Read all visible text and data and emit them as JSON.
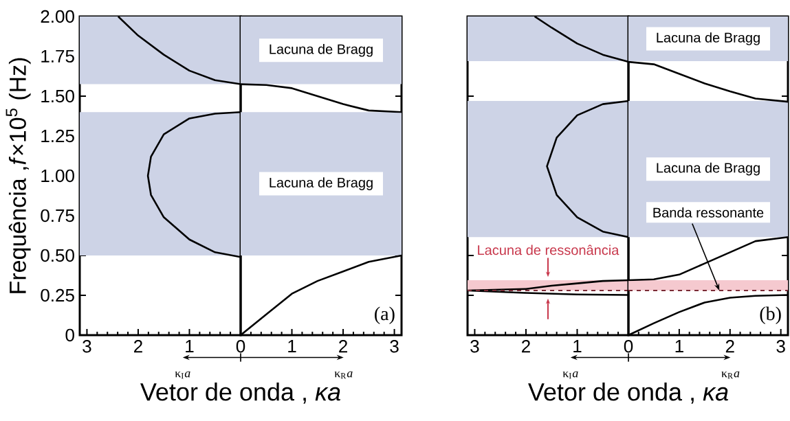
{
  "chart_data": [
    {
      "type": "line",
      "xlabel": "Vetor de onda , *κa*",
      "ylabel": "Frequência ,*f*×10$^{5}$ (Hz)",
      "xlim": [
        3.14,
        0
      ],
      "ylim": [
        0,
        2
      ],
      "xticks": [
        3,
        2,
        1,
        {
          "value": 0,
          "label": null
        }
      ],
      "yticks": [
        0,
        0.25,
        {
          "value": 0.5,
          "label": "0.50"
        },
        0.75,
        {
          "value": 1,
          "label": "1.00"
        },
        1.25,
        {
          "value": 1.5,
          "label": "1.50"
        },
        1.75,
        {
          "value": 2,
          "label": "2.00"
        }
      ],
      "series": [
        {
          "color": "#000000",
          "x": [
            0,
            0.5,
            1.0,
            1.5,
            1.75,
            1.81,
            1.75,
            1.5,
            1.0,
            0.5,
            0
          ],
          "values": [
            0.49,
            0.52,
            0.6,
            0.74,
            0.88,
            1.0,
            1.12,
            1.26,
            1.36,
            1.39,
            1.4
          ]
        },
        {
          "color": "#000000",
          "x": [
            2.39,
            2,
            1.5,
            1,
            0.5,
            0
          ],
          "values": [
            2.0,
            1.88,
            1.76,
            1.66,
            1.6,
            1.575
          ]
        }
      ],
      "bands": [
        {
          "axis": "y",
          "from": 1.575,
          "to": 2.0,
          "color": "#cdd3e6"
        },
        {
          "axis": "y",
          "from": 0.5,
          "to": 1.4,
          "color": "#cdd3e6"
        }
      ],
      "annotations": [
        "κ$_{I}$*a*"
      ]
    },
    {
      "type": "line",
      "tick_labels": "x",
      "xlim": [
        0,
        3.14
      ],
      "ylim": [
        0,
        2
      ],
      "xticks": [
        0,
        1,
        2,
        3
      ],
      "yticks": [
        0,
        0.25,
        0.5,
        0.75,
        1,
        1.25,
        1.5,
        1.75,
        2
      ],
      "series": [
        {
          "color": "#000000",
          "x": [
            0,
            0.5,
            1,
            1.5,
            2,
            2.5,
            3.14
          ],
          "values": [
            0,
            0.13,
            0.26,
            0.34,
            0.4,
            0.46,
            0.5
          ]
        },
        {
          "color": "#000000",
          "x": [
            0,
            0.5,
            1,
            1.5,
            2,
            2.5,
            3.14
          ],
          "values": [
            1.575,
            1.57,
            1.55,
            1.5,
            1.45,
            1.41,
            1.4
          ]
        }
      ],
      "bands": [
        {
          "axis": "y",
          "from": 1.575,
          "to": 2.0,
          "label": "Lacuna de Bragg",
          "color": "#cdd3e6"
        },
        {
          "axis": "y",
          "from": 0.5,
          "to": 1.4,
          "label": "Lacuna de Bragg",
          "color": "#cdd3e6"
        }
      ],
      "annotations": [
        "κ$_{R}$*a*",
        "(a)"
      ]
    },
    {
      "type": "line",
      "xlabel": "Vetor de onda , *κa*",
      "tick_labels": "x",
      "xlim": [
        3.14,
        0
      ],
      "ylim": [
        0,
        2
      ],
      "xticks": [
        3,
        2,
        1,
        {
          "value": 0,
          "label": null
        }
      ],
      "yticks": [
        0,
        0.25,
        0.5,
        0.75,
        1,
        1.25,
        1.5,
        1.75,
        2
      ],
      "series": [
        {
          "color": "#000000",
          "x": [
            0,
            1,
            2,
            3.14,
            2,
            1.5,
            1,
            0.5,
            0
          ],
          "values": [
            0.252,
            0.255,
            0.265,
            0.28,
            0.29,
            0.31,
            0.325,
            0.34,
            0.345
          ]
        },
        {
          "color": "#000000",
          "x": [
            0,
            0.5,
            1.0,
            1.4,
            1.59,
            1.4,
            1.0,
            0.5,
            0
          ],
          "values": [
            0.615,
            0.65,
            0.74,
            0.88,
            1.06,
            1.24,
            1.38,
            1.45,
            1.47
          ]
        },
        {
          "color": "#000000",
          "x": [
            1.83,
            1.5,
            1,
            0.5,
            0
          ],
          "values": [
            2.0,
            1.93,
            1.83,
            1.76,
            1.715
          ]
        }
      ],
      "bands": [
        {
          "axis": "y",
          "from": 1.72,
          "to": 2.0,
          "color": "#cdd3e6"
        },
        {
          "axis": "y",
          "from": 0.615,
          "to": 1.47,
          "color": "#cdd3e6"
        },
        {
          "axis": "y",
          "from": 0.28,
          "to": 0.345,
          "label": "Lacuna de ressonância",
          "color": "#f5c9cf"
        }
      ],
      "ref_lines": [
        {
          "axis": "y",
          "value": 0.28,
          "color": "#7a2a35",
          "line_style": "dashed"
        }
      ],
      "annotations": [
        "κ$_{I}$*a*"
      ]
    },
    {
      "type": "line",
      "tick_labels": "x",
      "xlim": [
        0,
        3.14
      ],
      "ylim": [
        0,
        2
      ],
      "xticks": [
        0,
        1,
        2,
        3
      ],
      "yticks": [
        0,
        0.25,
        0.5,
        0.75,
        1,
        1.25,
        1.5,
        1.75,
        2
      ],
      "series": [
        {
          "color": "#000000",
          "x": [
            0,
            0.5,
            1,
            1.5,
            2,
            2.5,
            3.14
          ],
          "values": [
            0,
            0.075,
            0.145,
            0.205,
            0.235,
            0.247,
            0.252
          ]
        },
        {
          "color": "#000000",
          "x": [
            0,
            0.5,
            1,
            1.5,
            2,
            2.5,
            3.14
          ],
          "values": [
            0.345,
            0.35,
            0.38,
            0.45,
            0.52,
            0.59,
            0.615
          ]
        },
        {
          "color": "#000000",
          "x": [
            0,
            0.5,
            1,
            1.5,
            2,
            2.5,
            3.14
          ],
          "values": [
            1.715,
            1.7,
            1.64,
            1.58,
            1.53,
            1.485,
            1.465
          ]
        }
      ],
      "bands": [
        {
          "axis": "y",
          "from": 1.72,
          "to": 2.0,
          "label": "Lacuna de Bragg",
          "color": "#cdd3e6"
        },
        {
          "axis": "y",
          "from": 0.615,
          "to": 1.47,
          "label": "Lacuna de Bragg",
          "color": "#cdd3e6"
        },
        {
          "axis": "y",
          "from": 0.28,
          "to": 0.345,
          "color": "#f5c9cf"
        }
      ],
      "ref_lines": [
        {
          "axis": "y",
          "value": 0.28,
          "label": "Banda ressonante",
          "color": "#7a2a35",
          "line_style": "dashed"
        }
      ],
      "annotations": [
        "κ$_{R}$*a*",
        "(b)"
      ]
    }
  ]
}
